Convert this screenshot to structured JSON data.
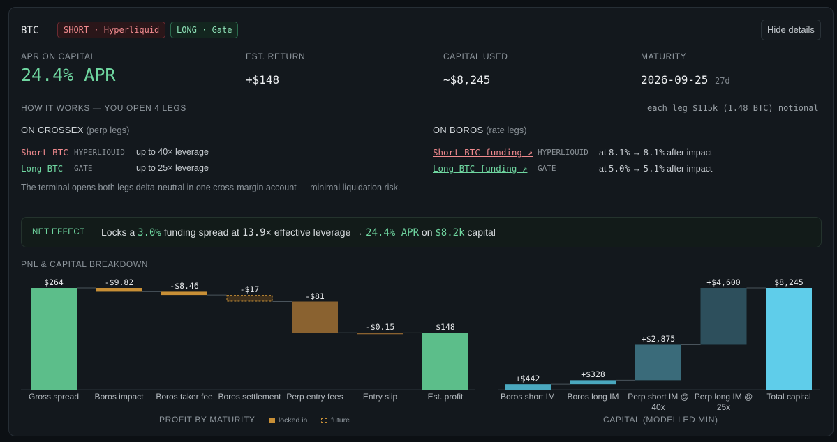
{
  "header": {
    "asset": "BTC",
    "badge_short": "SHORT · Hyperliquid",
    "badge_long": "LONG · Gate",
    "hide_button": "Hide details"
  },
  "stats": {
    "apr_label": "APR ON CAPITAL",
    "apr_value": "24.4% APR",
    "return_label": "EST. RETURN",
    "return_value": "+$148",
    "capital_label": "CAPITAL USED",
    "capital_value": "~$8,245",
    "maturity_label": "MATURITY",
    "maturity_value": "2026-09-25",
    "maturity_days": "27d"
  },
  "how": {
    "label": "HOW IT WORKS — YOU OPEN 4 LEGS",
    "leg_note": "each leg $115k (1.48 BTC) notional",
    "crossex_head": "ON CROSSEX",
    "crossex_sub": "(perp legs)",
    "crossex_legs": [
      {
        "name": "Short BTC",
        "venue": "HYPERLIQUID",
        "leverage": "up to 40× leverage"
      },
      {
        "name": "Long BTC",
        "venue": "GATE",
        "leverage": "up to 25× leverage"
      }
    ],
    "boros_head": "ON BOROS",
    "boros_sub": "(rate legs)",
    "boros_legs": [
      {
        "name": "Short BTC funding ↗",
        "venue": "HYPERLIQUID",
        "at": "at",
        "from": "8.1%",
        "arrow": "→",
        "to": "8.1%",
        "after": "after impact"
      },
      {
        "name": "Long BTC funding ↗",
        "venue": "GATE",
        "at": "at",
        "from": "5.0%",
        "arrow": "→",
        "to": "5.1%",
        "after": "after impact"
      }
    ],
    "description": "The terminal opens both legs delta-neutral in one cross-margin account — minimal liquidation risk."
  },
  "net_effect": {
    "label": "NET EFFECT",
    "t1": "Locks a",
    "spread": "3.0%",
    "t2": "funding spread at",
    "leverage": "13.9×",
    "t3": "effective leverage →",
    "apr": "24.4% APR",
    "t4": "on",
    "capital": "$8.2k",
    "t5": "capital"
  },
  "chart_section_label": "PNL & CAPITAL BREAKDOWN",
  "colors": {
    "green": "#5cbe8a",
    "locked": "#c88f36",
    "perp_loss": "#8a6230",
    "capital_light": "#4aa8bf",
    "capital_mid": "#3a6b7a",
    "capital_dark": "#2d4f5c",
    "capital_total": "#5fcdea"
  },
  "chart_data": [
    {
      "type": "bar",
      "subtype": "waterfall",
      "title": "PROFIT BY MATURITY",
      "legend": [
        "locked in",
        "future"
      ],
      "categories": [
        "Gross spread",
        "Boros impact",
        "Boros taker fee",
        "Boros settlement",
        "Perp entry fees",
        "Entry slip",
        "Est. profit"
      ],
      "values": [
        264,
        -9.82,
        -8.46,
        -17,
        -81,
        -0.15,
        148
      ],
      "labels": [
        "$264",
        "-$9.82",
        "-$8.46",
        "-$17",
        "-$81",
        "-$0.15",
        "$148"
      ],
      "kinds": [
        "total",
        "delta",
        "delta",
        "delta",
        "delta",
        "delta",
        "total"
      ],
      "styles": [
        "green",
        "locked",
        "locked",
        "future",
        "perp_loss",
        "perp_loss",
        "green"
      ]
    },
    {
      "type": "bar",
      "subtype": "waterfall",
      "title": "CAPITAL (MODELLED MIN)",
      "categories": [
        "Boros short IM",
        "Boros long IM",
        "Perp short IM @ 40x",
        "Perp long IM @ 25x",
        "Total capital"
      ],
      "values": [
        442,
        328,
        2875,
        4600,
        8245
      ],
      "labels": [
        "+$442",
        "+$328",
        "+$2,875",
        "+$4,600",
        "$8,245"
      ],
      "kinds": [
        "delta",
        "delta",
        "delta",
        "delta",
        "total"
      ],
      "styles": [
        "capital_light",
        "capital_light",
        "capital_mid",
        "capital_dark",
        "capital_total"
      ]
    }
  ]
}
